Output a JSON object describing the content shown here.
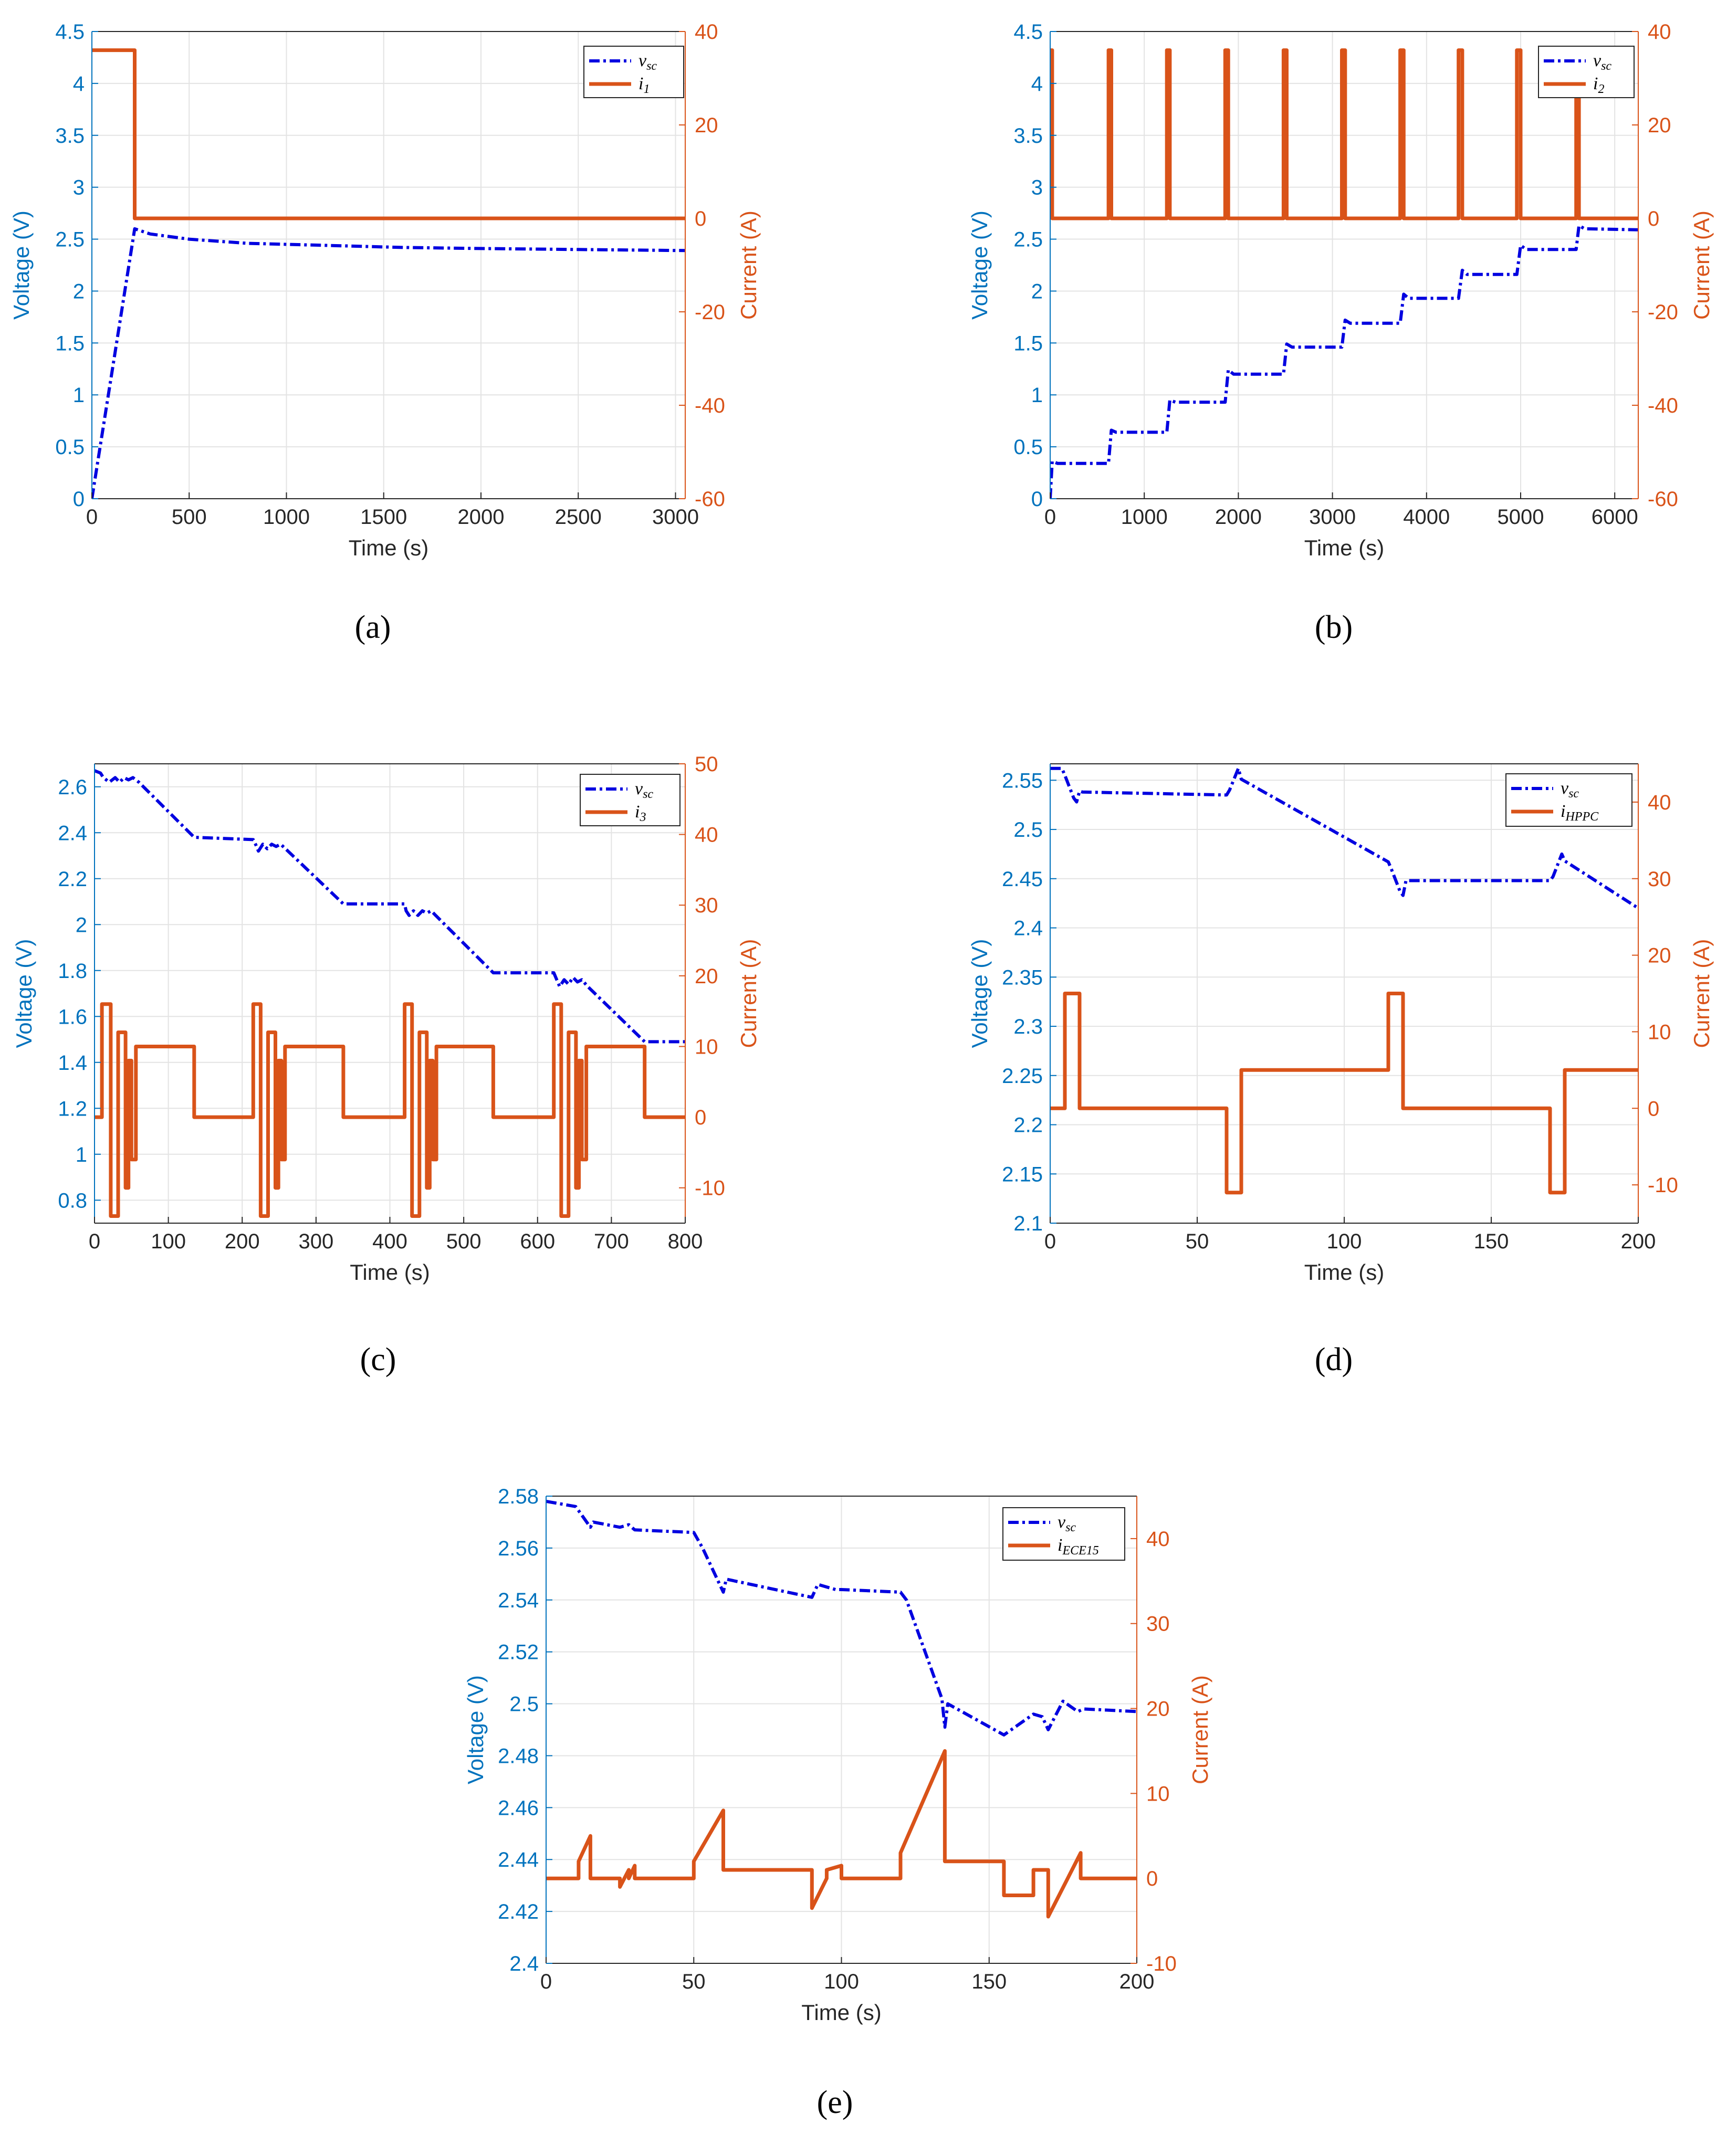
{
  "colors": {
    "voltage": "#0000e0",
    "current": "#d95319",
    "left_axis": "#0072bd",
    "right_axis": "#d95319",
    "grid": "#e3e3e3"
  },
  "chart_data": [
    {
      "type": "line",
      "panel": "(a)",
      "xlabel": "Time (s)",
      "ylabel_left": "Voltage (V)",
      "ylabel_right": "Current (A)",
      "xlim": [
        0,
        3050
      ],
      "ylim_left": [
        0,
        4.5
      ],
      "ylim_right": [
        -60,
        40
      ],
      "xticks": [
        "0",
        "500",
        "1000",
        "1500",
        "2000",
        "2500",
        "3000"
      ],
      "yticks_left": [
        "0",
        "0.5",
        "1",
        "1.5",
        "2",
        "2.5",
        "3",
        "3.5",
        "4",
        "4.5"
      ],
      "yticks_right": [
        "-60",
        "-40",
        "-20",
        "0",
        "20",
        "40"
      ],
      "xtick_values": [
        0,
        500,
        1000,
        1500,
        2000,
        2500,
        3000
      ],
      "ytick_values_left": [
        0,
        0.5,
        1,
        1.5,
        2,
        2.5,
        3,
        3.5,
        4,
        4.5
      ],
      "ytick_values_right": [
        -60,
        -40,
        -20,
        0,
        20,
        40
      ],
      "grid": true,
      "legend_position": "top-right",
      "series": [
        {
          "name": "v",
          "sub": "sc",
          "axis": "left",
          "style": "dashdot",
          "x": [
            0,
            220,
            300,
            500,
            800,
            1200,
            1600,
            2000,
            2500,
            3050
          ],
          "y": [
            0,
            2.6,
            2.55,
            2.5,
            2.46,
            2.44,
            2.42,
            2.41,
            2.4,
            2.39
          ]
        },
        {
          "name": "i",
          "sub": "1",
          "axis": "right",
          "style": "solid",
          "x": [
            0,
            220,
            220,
            3050
          ],
          "y": [
            36,
            36,
            0,
            0
          ]
        }
      ]
    },
    {
      "type": "line",
      "panel": "(b)",
      "xlabel": "Time (s)",
      "ylabel_left": "Voltage (V)",
      "ylabel_right": "Current (A)",
      "xlim": [
        0,
        6250
      ],
      "ylim_left": [
        0,
        4.5
      ],
      "ylim_right": [
        -60,
        40
      ],
      "xticks": [
        "0",
        "1000",
        "2000",
        "3000",
        "4000",
        "5000",
        "6000"
      ],
      "yticks_left": [
        "0",
        "0.5",
        "1",
        "1.5",
        "2",
        "2.5",
        "3",
        "3.5",
        "4",
        "4.5"
      ],
      "yticks_right": [
        "-60",
        "-40",
        "-20",
        "0",
        "20",
        "40"
      ],
      "xtick_values": [
        0,
        1000,
        2000,
        3000,
        4000,
        5000,
        6000
      ],
      "ytick_values_left": [
        0,
        0.5,
        1,
        1.5,
        2,
        2.5,
        3,
        3.5,
        4,
        4.5
      ],
      "ytick_values_right": [
        -60,
        -40,
        -20,
        0,
        20,
        40
      ],
      "grid": true,
      "legend_position": "top-right",
      "series": [
        {
          "name": "v",
          "sub": "sc",
          "axis": "left",
          "style": "dashdot",
          "x": [
            0,
            22,
            80,
            620,
            650,
            700,
            1240,
            1272,
            1330,
            1860,
            1893,
            1950,
            2480,
            2514,
            2570,
            3100,
            3135,
            3190,
            3720,
            3757,
            3810,
            4340,
            4380,
            4430,
            4960,
            5000,
            5060,
            5590,
            5620,
            5680,
            6250
          ],
          "y": [
            0,
            0.36,
            0.34,
            0.34,
            0.66,
            0.64,
            0.64,
            0.95,
            0.93,
            0.93,
            1.24,
            1.2,
            1.2,
            1.49,
            1.46,
            1.46,
            1.72,
            1.69,
            1.69,
            1.97,
            1.93,
            1.93,
            2.2,
            2.16,
            2.16,
            2.44,
            2.4,
            2.4,
            2.63,
            2.6,
            2.59
          ]
        },
        {
          "name": "i",
          "sub": "2",
          "axis": "right",
          "style": "solid",
          "x": [
            0,
            0,
            22,
            22,
            620,
            620,
            650,
            650,
            1240,
            1240,
            1272,
            1272,
            1860,
            1860,
            1893,
            1893,
            2480,
            2480,
            2514,
            2514,
            3100,
            3100,
            3135,
            3135,
            3720,
            3720,
            3757,
            3757,
            4340,
            4340,
            4380,
            4380,
            4960,
            4960,
            5000,
            5000,
            5590,
            5590,
            5620,
            5620,
            6250
          ],
          "y": [
            0,
            36,
            36,
            0,
            0,
            36,
            36,
            0,
            0,
            36,
            36,
            0,
            0,
            36,
            36,
            0,
            0,
            36,
            36,
            0,
            0,
            36,
            36,
            0,
            0,
            36,
            36,
            0,
            0,
            36,
            36,
            0,
            0,
            36,
            36,
            0,
            0,
            36,
            36,
            0,
            0
          ]
        }
      ]
    },
    {
      "type": "line",
      "panel": "(c)",
      "xlabel": "Time (s)",
      "ylabel_left": "Voltage (V)",
      "ylabel_right": "Current (A)",
      "xlim": [
        0,
        800
      ],
      "ylim_left": [
        0.7,
        2.7
      ],
      "ylim_right": [
        -15,
        50
      ],
      "xticks": [
        "0",
        "100",
        "200",
        "300",
        "400",
        "500",
        "600",
        "700",
        "800"
      ],
      "yticks_left": [
        "0.8",
        "1",
        "1.2",
        "1.4",
        "1.6",
        "1.8",
        "2",
        "2.2",
        "2.4",
        "2.6"
      ],
      "yticks_right": [
        "-10",
        "0",
        "10",
        "20",
        "30",
        "40",
        "50"
      ],
      "xtick_values": [
        0,
        100,
        200,
        300,
        400,
        500,
        600,
        700,
        800
      ],
      "ytick_values_left": [
        0.8,
        1,
        1.2,
        1.4,
        1.6,
        1.8,
        2,
        2.2,
        2.4,
        2.6
      ],
      "ytick_values_right": [
        -10,
        0,
        10,
        20,
        30,
        40,
        50
      ],
      "grid": true,
      "legend_position": "top-right",
      "series": [
        {
          "name": "v",
          "sub": "sc",
          "axis": "left",
          "style": "dashdot",
          "x": [
            0,
            8,
            12,
            20,
            28,
            34,
            40,
            46,
            52,
            60,
            135,
            215,
            218,
            222,
            228,
            234,
            240,
            246,
            252,
            262,
            337,
            420,
            422,
            426,
            432,
            438,
            444,
            450,
            456,
            462,
            540,
            622,
            626,
            630,
            636,
            642,
            648,
            654,
            660,
            668,
            745,
            800
          ],
          "y": [
            2.67,
            2.66,
            2.64,
            2.62,
            2.64,
            2.62,
            2.64,
            2.63,
            2.64,
            2.62,
            2.38,
            2.37,
            2.35,
            2.32,
            2.35,
            2.33,
            2.35,
            2.34,
            2.35,
            2.32,
            2.09,
            2.09,
            2.06,
            2.04,
            2.06,
            2.04,
            2.06,
            2.05,
            2.06,
            2.04,
            1.79,
            1.79,
            1.76,
            1.73,
            1.76,
            1.74,
            1.77,
            1.75,
            1.76,
            1.73,
            1.49,
            1.49
          ]
        },
        {
          "name": "i",
          "sub": "3",
          "axis": "right",
          "style": "solid",
          "x": [
            0,
            10,
            10,
            22,
            22,
            32,
            32,
            42,
            42,
            46,
            46,
            50,
            50,
            56,
            56,
            135,
            135,
            215,
            215,
            225,
            225,
            235,
            235,
            245,
            245,
            249,
            249,
            253,
            253,
            258,
            258,
            337,
            337,
            420,
            420,
            430,
            430,
            440,
            440,
            450,
            450,
            454,
            454,
            458,
            458,
            463,
            463,
            540,
            540,
            622,
            622,
            632,
            632,
            642,
            642,
            652,
            652,
            656,
            656,
            660,
            660,
            666,
            666,
            745,
            745,
            800
          ],
          "y": [
            0,
            0,
            16,
            16,
            -14,
            -14,
            12,
            12,
            -10,
            -10,
            8,
            8,
            -6,
            -6,
            10,
            10,
            0,
            0,
            16,
            16,
            -14,
            -14,
            12,
            12,
            -10,
            -10,
            8,
            8,
            -6,
            -6,
            10,
            10,
            0,
            0,
            16,
            16,
            -14,
            -14,
            12,
            12,
            -10,
            -10,
            8,
            8,
            -6,
            -6,
            10,
            10,
            0,
            0,
            16,
            16,
            -14,
            -14,
            12,
            12,
            -10,
            -10,
            8,
            8,
            -6,
            -6,
            10,
            10,
            0,
            0
          ]
        }
      ]
    },
    {
      "type": "line",
      "panel": "(d)",
      "xlabel": "Time (s)",
      "ylabel_left": "Voltage (V)",
      "ylabel_right": "Current (A)",
      "xlim": [
        0,
        200
      ],
      "ylim_left": [
        2.1,
        2.5667
      ],
      "ylim_right": [
        -15,
        45
      ],
      "xticks": [
        "0",
        "50",
        "100",
        "150",
        "200"
      ],
      "yticks_left": [
        "2.1",
        "2.15",
        "2.2",
        "2.25",
        "2.3",
        "2.35",
        "2.4",
        "2.45",
        "2.5",
        "2.55"
      ],
      "yticks_right": [
        "-10",
        "0",
        "10",
        "20",
        "30",
        "40"
      ],
      "xtick_values": [
        0,
        50,
        100,
        150,
        200
      ],
      "ytick_values_left": [
        2.1,
        2.15,
        2.2,
        2.25,
        2.3,
        2.35,
        2.4,
        2.45,
        2.5,
        2.55
      ],
      "ytick_values_right": [
        -10,
        0,
        10,
        20,
        30,
        40
      ],
      "grid": true,
      "legend_position": "top-right",
      "series": [
        {
          "name": "v",
          "sub": "sc",
          "axis": "left",
          "style": "dashdot",
          "x": [
            0,
            4,
            5,
            8,
            9,
            10,
            11,
            60,
            61,
            64,
            65,
            115,
            116,
            119,
            120,
            121,
            170,
            171,
            174,
            175,
            200
          ],
          "y": [
            2.562,
            2.562,
            2.555,
            2.532,
            2.528,
            2.539,
            2.538,
            2.535,
            2.54,
            2.562,
            2.551,
            2.467,
            2.46,
            2.437,
            2.433,
            2.448,
            2.448,
            2.452,
            2.475,
            2.468,
            2.42
          ]
        },
        {
          "name": "i",
          "sub": "HPPC",
          "axis": "right",
          "style": "solid",
          "x": [
            0,
            5,
            5,
            10,
            10,
            60,
            60,
            65,
            65,
            115,
            115,
            120,
            120,
            170,
            170,
            175,
            175,
            200
          ],
          "y": [
            0,
            0,
            15,
            15,
            0,
            0,
            -11,
            -11,
            5,
            5,
            15,
            15,
            0,
            0,
            -11,
            -11,
            5,
            5
          ]
        }
      ]
    },
    {
      "type": "line",
      "panel": "(e)",
      "xlabel": "Time (s)",
      "ylabel_left": "Voltage (V)",
      "ylabel_right": "Current (A)",
      "xlim": [
        0,
        200
      ],
      "ylim_left": [
        2.4,
        2.58
      ],
      "ylim_right": [
        -10,
        45
      ],
      "xticks": [
        "0",
        "50",
        "100",
        "150",
        "200"
      ],
      "yticks_left": [
        "2.4",
        "2.42",
        "2.44",
        "2.46",
        "2.48",
        "2.5",
        "2.52",
        "2.54",
        "2.56",
        "2.58"
      ],
      "yticks_right": [
        "-10",
        "0",
        "10",
        "20",
        "30",
        "40"
      ],
      "xtick_values": [
        0,
        50,
        100,
        150,
        200
      ],
      "ytick_values_left": [
        2.4,
        2.42,
        2.44,
        2.46,
        2.48,
        2.5,
        2.52,
        2.54,
        2.56,
        2.58
      ],
      "ytick_values_right": [
        -10,
        0,
        10,
        20,
        30,
        40
      ],
      "grid": true,
      "legend_position": "top-right",
      "series": [
        {
          "name": "v",
          "sub": "sc",
          "axis": "left",
          "style": "dashdot",
          "x": [
            0,
            10,
            15,
            16,
            25,
            28,
            30,
            50,
            53,
            60,
            61,
            90,
            92,
            95,
            98,
            100,
            120,
            122,
            134,
            135,
            136,
            155,
            165,
            168,
            170,
            175,
            180,
            182,
            200
          ],
          "y": [
            2.578,
            2.576,
            2.568,
            2.57,
            2.568,
            2.569,
            2.567,
            2.566,
            2.56,
            2.543,
            2.548,
            2.541,
            2.546,
            2.545,
            2.544,
            2.544,
            2.543,
            2.54,
            2.502,
            2.491,
            2.5,
            2.488,
            2.496,
            2.495,
            2.49,
            2.501,
            2.497,
            2.498,
            2.497
          ]
        },
        {
          "name": "i",
          "sub": "ECE15",
          "axis": "right",
          "style": "solid",
          "x": [
            0,
            11,
            11,
            15,
            15,
            25,
            25,
            28,
            28,
            30,
            30,
            50,
            50,
            60,
            60,
            90,
            90,
            95,
            95,
            100,
            100,
            120,
            120,
            135,
            135,
            155,
            155,
            165,
            165,
            170,
            170,
            181,
            181,
            200
          ],
          "y": [
            0,
            0,
            2,
            5,
            0,
            0,
            -1,
            1,
            0,
            1.5,
            0,
            0,
            2,
            8,
            1,
            1,
            -3.5,
            0,
            1,
            1.5,
            0,
            0,
            3,
            15,
            2,
            2,
            -2,
            -2,
            1,
            1,
            -4.5,
            3,
            0,
            0
          ]
        }
      ]
    }
  ]
}
